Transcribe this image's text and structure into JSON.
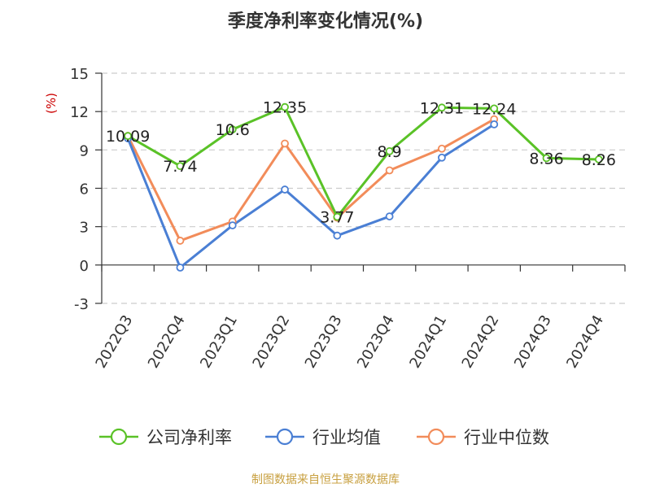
{
  "chart_data": {
    "type": "line",
    "title": "季度净利率变化情况(%)",
    "ylabel": "(%)",
    "xlabel": "",
    "categories": [
      "2022Q3",
      "2022Q4",
      "2023Q1",
      "2023Q2",
      "2023Q3",
      "2023Q4",
      "2024Q1",
      "2024Q2",
      "2024Q3",
      "2024Q4"
    ],
    "ylim": [
      -3,
      15
    ],
    "yticks": [
      -3,
      0,
      3,
      6,
      9,
      12,
      15
    ],
    "grid": "horizontal dashed",
    "legend_position": "bottom",
    "series": [
      {
        "name": "公司净利率",
        "color": "#5ac227",
        "values": [
          10.09,
          7.74,
          10.6,
          12.35,
          3.77,
          8.9,
          12.31,
          12.24,
          8.36,
          8.26
        ],
        "labels": [
          "10.09",
          "7.74",
          "10.6",
          "12.35",
          "3.77",
          "8.9",
          "12.31",
          "12.24",
          "8.36",
          "8.26"
        ]
      },
      {
        "name": "行业均值",
        "color": "#4a7fd4",
        "values": [
          9.9,
          -0.2,
          3.1,
          5.9,
          2.3,
          3.8,
          8.4,
          11.0,
          null,
          null
        ]
      },
      {
        "name": "行业中位数",
        "color": "#f28c5a",
        "values": [
          10.1,
          1.9,
          3.4,
          9.5,
          3.7,
          7.4,
          9.1,
          11.4,
          null,
          null
        ]
      }
    ]
  },
  "source": "制图数据来自恒生聚源数据库"
}
